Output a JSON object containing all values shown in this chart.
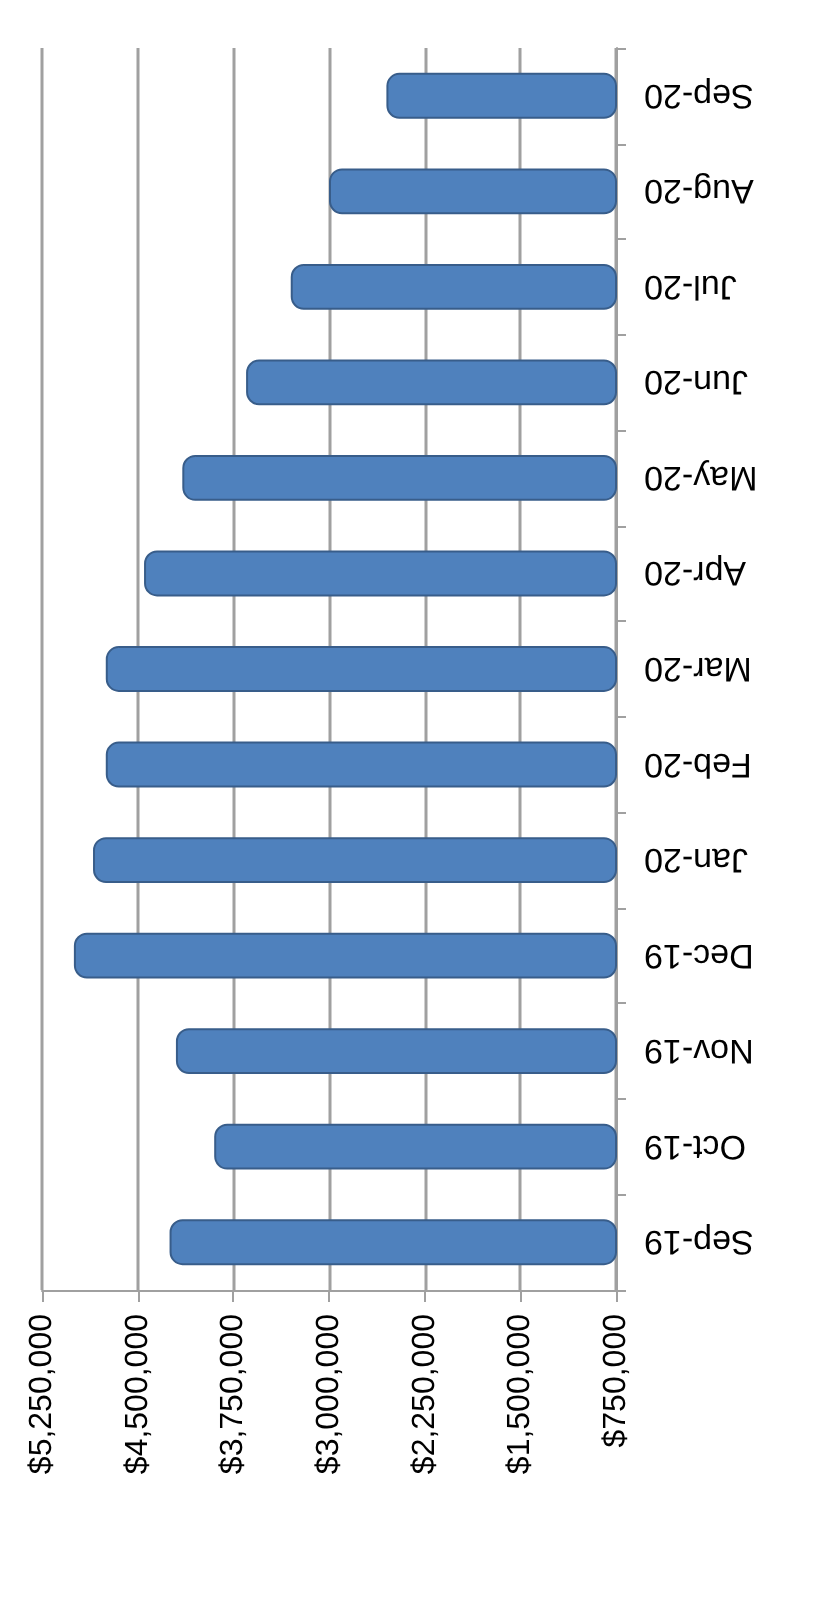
{
  "chart_data": {
    "type": "bar",
    "orientation": "horizontal",
    "categories": [
      "Sep-20",
      "Aug-20",
      "Jul-20",
      "Jun-20",
      "May-20",
      "Apr-20",
      "Mar-20",
      "Feb-20",
      "Jan-20",
      "Dec-19",
      "Nov-19",
      "Oct-19",
      "Sep-19"
    ],
    "values": [
      2550000,
      3000000,
      3300000,
      3650000,
      4150000,
      4450000,
      4750000,
      4750000,
      4850000,
      5000000,
      4200000,
      3900000,
      4250000
    ],
    "color": "#4f81bd",
    "xlim": [
      5250000,
      750000
    ],
    "xticks": [
      {
        "value": 750000,
        "label": "$750,000"
      },
      {
        "value": 1500000,
        "label": "$1,500,000"
      },
      {
        "value": 2250000,
        "label": "$2,250,000"
      },
      {
        "value": 3000000,
        "label": "$3,000,000"
      },
      {
        "value": 3750000,
        "label": "$3,750,000"
      },
      {
        "value": 4500000,
        "label": "$4,500,000"
      },
      {
        "value": 5250000,
        "label": "$5,250,000"
      }
    ],
    "grid": "x"
  }
}
